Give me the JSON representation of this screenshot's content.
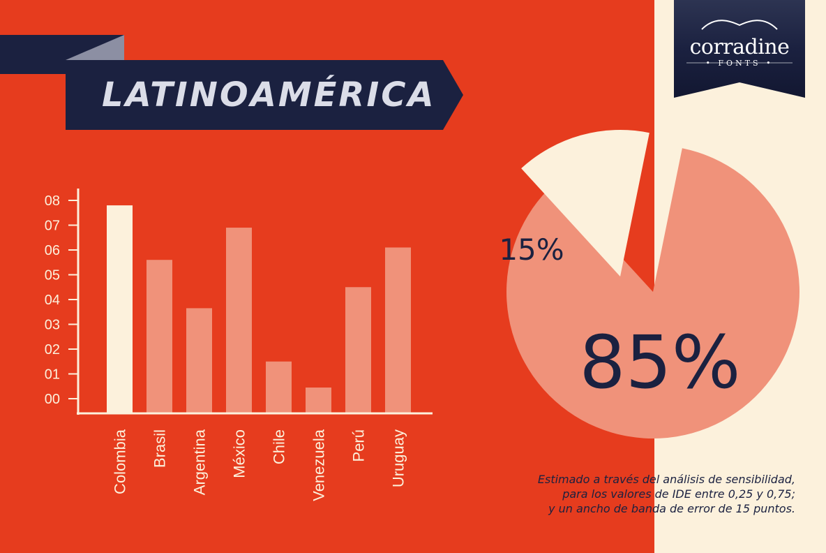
{
  "banner": {
    "title": "LATINOAMÉRICA"
  },
  "logo": {
    "word": "corradine",
    "sub": "• FONTS •"
  },
  "chart_data": [
    {
      "type": "bar",
      "categories": [
        "Colombia",
        "Brasil",
        "Argentina",
        "México",
        "Chile",
        "Venezuela",
        "Perú",
        "Uruguay"
      ],
      "values": [
        7.8,
        5.6,
        3.65,
        6.9,
        1.5,
        0.45,
        4.5,
        6.1
      ],
      "y_ticks": [
        "00",
        "01",
        "02",
        "03",
        "04",
        "05",
        "06",
        "07",
        "08"
      ],
      "ylim": [
        0,
        8
      ],
      "highlight": "Colombia",
      "colors": {
        "highlight": "#fcf1dc",
        "bar": "#f0927a"
      }
    },
    {
      "type": "pie",
      "slices": [
        {
          "label": "85%",
          "value": 85,
          "color": "#f0927a"
        },
        {
          "label": "15%",
          "value": 15,
          "color": "#fcf1dc"
        }
      ]
    }
  ],
  "note": {
    "lines": [
      "Estimado a través del análisis de sensibilidad,",
      "para los valores de IDE entre 0,25 y 0,75;",
      "y un ancho de banda de error de 15 puntos."
    ]
  },
  "colors": {
    "background": "#e63c1e",
    "panel": "#fcf1dc",
    "navy": "#1b2140",
    "salmon": "#f0927a"
  }
}
